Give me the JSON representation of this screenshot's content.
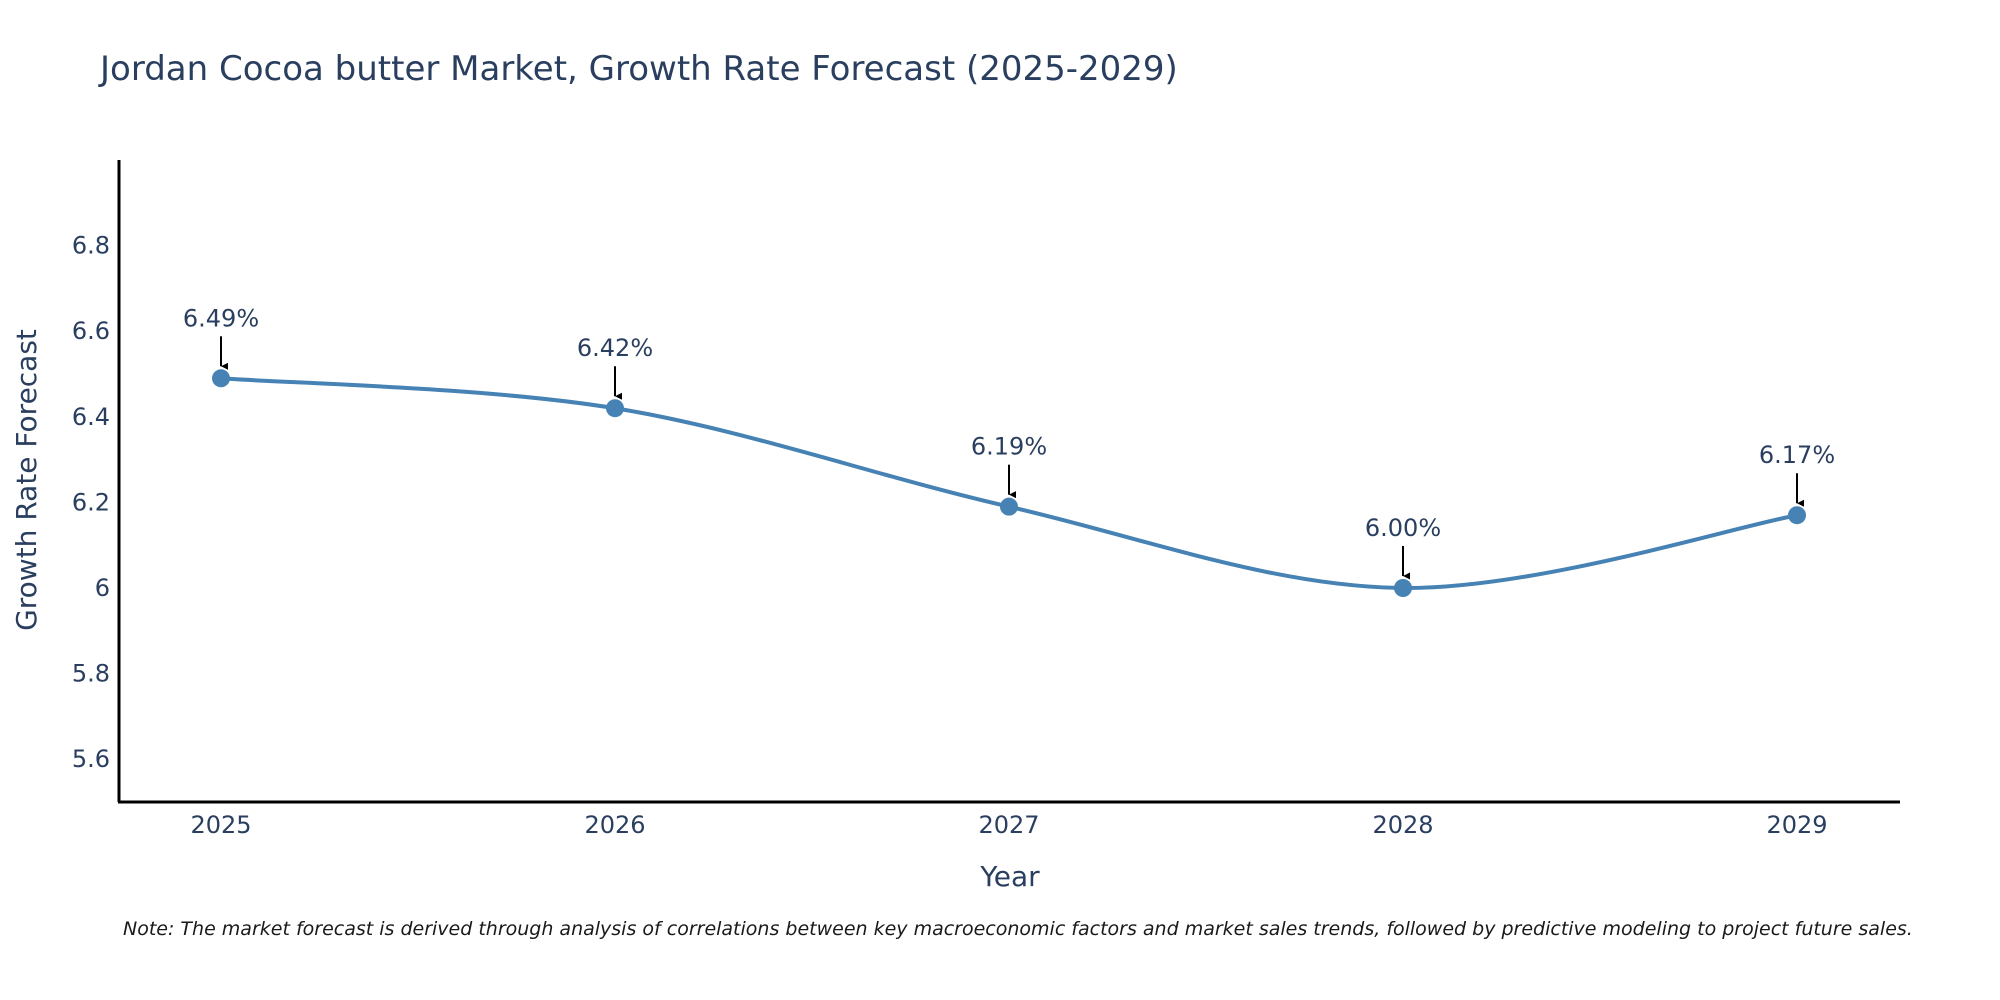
{
  "chart_data": {
    "type": "line",
    "title": "Jordan Cocoa butter Market, Growth Rate Forecast (2025-2029)",
    "xlabel": "Year",
    "ylabel": "Growth Rate Forecast",
    "categories": [
      "2025",
      "2026",
      "2027",
      "2028",
      "2029"
    ],
    "series": [
      {
        "name": "Growth Rate Forecast",
        "values": [
          6.49,
          6.42,
          6.19,
          6.0,
          6.17
        ],
        "color": "#4682b4"
      }
    ],
    "data_labels": [
      "6.49%",
      "6.42%",
      "6.19%",
      "6.00%",
      "6.17%"
    ],
    "ylim": [
      5.5,
      7.0
    ],
    "yticks": [
      5.6,
      5.8,
      6.0,
      6.2,
      6.4,
      6.6,
      6.8
    ],
    "ytick_labels": [
      "5.6",
      "5.8",
      "6",
      "6.2",
      "6.4",
      "6.6",
      "6.8"
    ],
    "grid": false,
    "note": "Note: The market forecast is derived through analysis of correlations between key macroeconomic factors and market sales trends, followed by predictive modeling to project future sales."
  },
  "colors": {
    "line": "#4682b4",
    "text": "#2a3f5f",
    "axis": "#000000",
    "arrow": "#000000"
  }
}
